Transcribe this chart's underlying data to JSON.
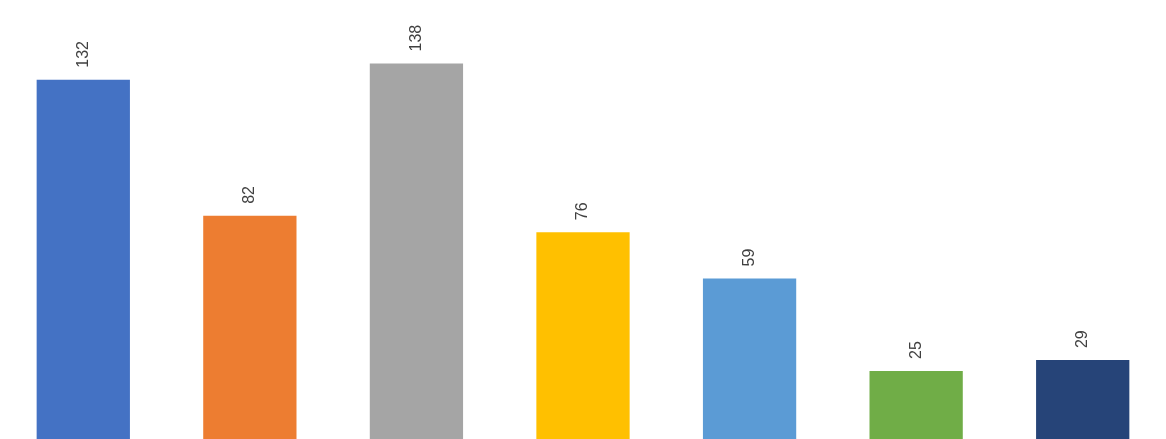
{
  "chart_data": {
    "type": "bar",
    "categories": [
      null,
      null,
      null,
      null,
      null,
      null,
      null
    ],
    "values": [
      132,
      82,
      138,
      76,
      59,
      25,
      29
    ],
    "colors": [
      "#4472c4",
      "#ed7d31",
      "#a5a5a5",
      "#ffc000",
      "#5b9bd5",
      "#70ad47",
      "#264478"
    ],
    "data_labels": true,
    "grid": false,
    "legend": false
  }
}
